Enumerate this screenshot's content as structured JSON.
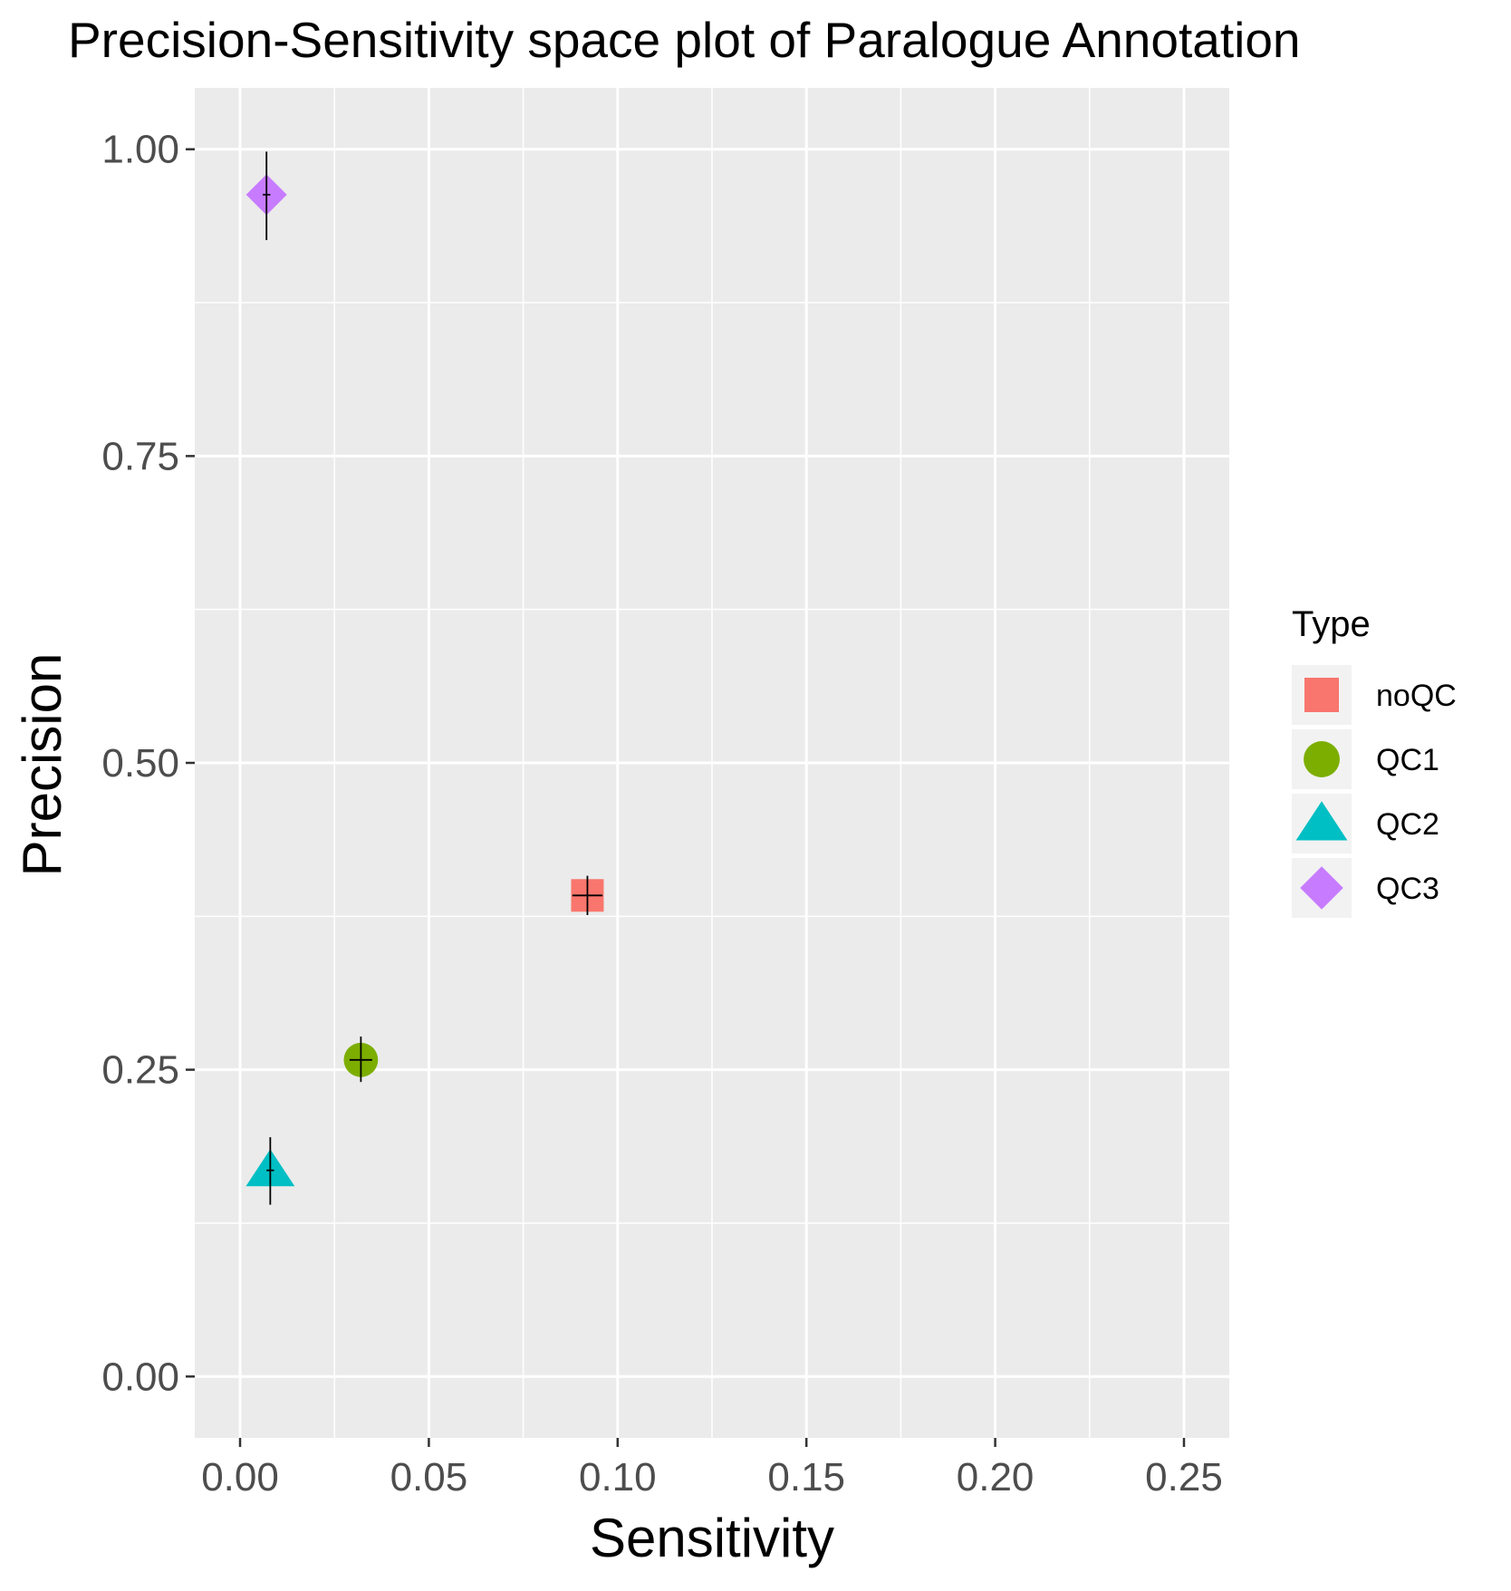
{
  "chart_data": {
    "type": "scatter",
    "title": "Precision-Sensitivity space plot of Paralogue Annotation",
    "xlabel": "Sensitivity",
    "ylabel": "Precision",
    "xlim": [
      -0.012,
      0.262
    ],
    "ylim": [
      -0.05,
      1.05
    ],
    "x_ticks": [
      0.0,
      0.05,
      0.1,
      0.15,
      0.2,
      0.25
    ],
    "x_tick_labels": [
      "0.00",
      "0.05",
      "0.10",
      "0.15",
      "0.20",
      "0.25"
    ],
    "y_ticks": [
      0.0,
      0.25,
      0.5,
      0.75,
      1.0
    ],
    "y_tick_labels": [
      "0.00",
      "0.25",
      "0.50",
      "0.75",
      "1.00"
    ],
    "grid": true,
    "panel_background": "#ebebeb",
    "legend": {
      "title": "Type",
      "position": "right",
      "entries": [
        {
          "label": "noQC",
          "shape": "square",
          "color": "#F8766D"
        },
        {
          "label": "QC1",
          "shape": "circle",
          "color": "#7CAE00"
        },
        {
          "label": "QC2",
          "shape": "triangle",
          "color": "#00BFC4"
        },
        {
          "label": "QC3",
          "shape": "diamond",
          "color": "#C77CFF"
        }
      ]
    },
    "series": [
      {
        "name": "noQC",
        "shape": "square",
        "color": "#F8766D",
        "x": 0.092,
        "y": 0.392,
        "x_err": [
          0.088,
          0.096
        ],
        "y_err": [
          0.376,
          0.408
        ]
      },
      {
        "name": "QC1",
        "shape": "circle",
        "color": "#7CAE00",
        "x": 0.032,
        "y": 0.258,
        "x_err": [
          0.029,
          0.035
        ],
        "y_err": [
          0.24,
          0.277
        ]
      },
      {
        "name": "QC2",
        "shape": "triangle",
        "color": "#00BFC4",
        "x": 0.008,
        "y": 0.168,
        "x_err": [
          0.007,
          0.009
        ],
        "y_err": [
          0.14,
          0.195
        ]
      },
      {
        "name": "QC3",
        "shape": "diamond",
        "color": "#C77CFF",
        "x": 0.007,
        "y": 0.963,
        "x_err": [
          0.006,
          0.008
        ],
        "y_err": [
          0.926,
          0.998
        ]
      }
    ]
  }
}
